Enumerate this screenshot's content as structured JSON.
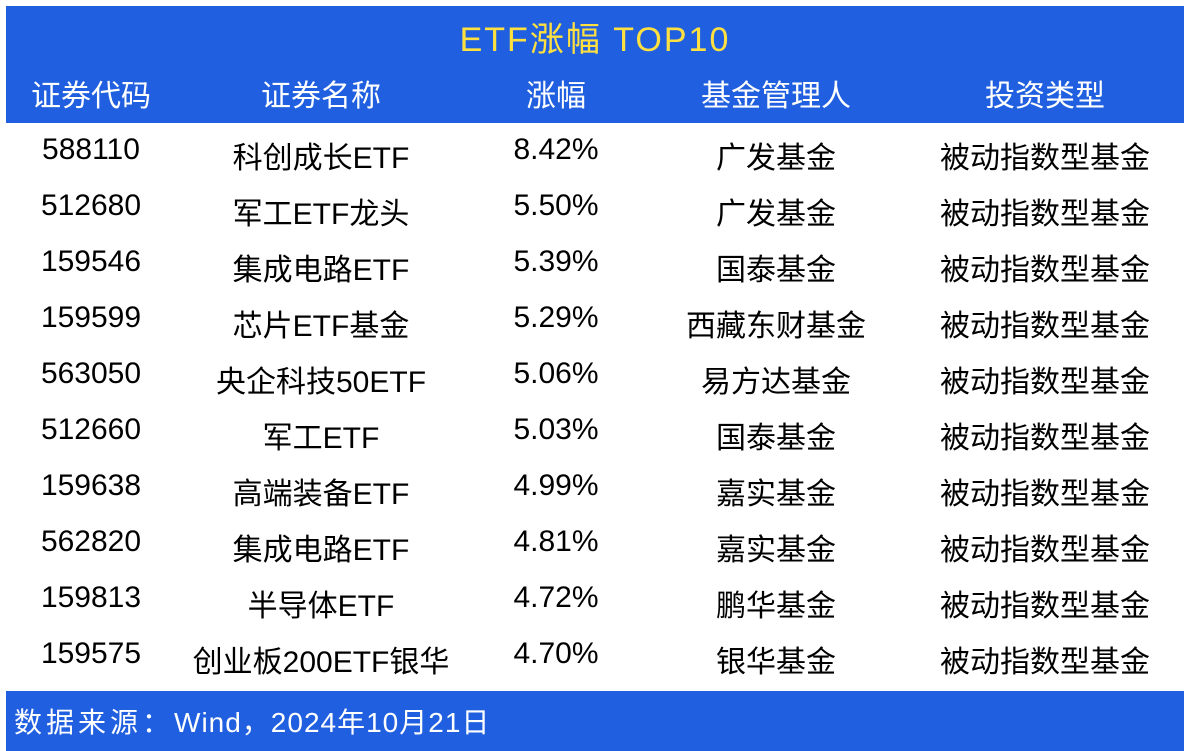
{
  "title": "ETF涨幅 TOP10",
  "columns": {
    "code": "证券代码",
    "name": "证券名称",
    "pct": "涨幅",
    "mgr": "基金管理人",
    "type": "投资类型"
  },
  "rows": [
    {
      "code": "588110",
      "name": "科创成长ETF",
      "pct": "8.42%",
      "mgr": "广发基金",
      "type": "被动指数型基金"
    },
    {
      "code": "512680",
      "name": "军工ETF龙头",
      "pct": "5.50%",
      "mgr": "广发基金",
      "type": "被动指数型基金"
    },
    {
      "code": "159546",
      "name": "集成电路ETF",
      "pct": "5.39%",
      "mgr": "国泰基金",
      "type": "被动指数型基金"
    },
    {
      "code": "159599",
      "name": "芯片ETF基金",
      "pct": "5.29%",
      "mgr": "西藏东财基金",
      "type": "被动指数型基金"
    },
    {
      "code": "563050",
      "name": "央企科技50ETF",
      "pct": "5.06%",
      "mgr": "易方达基金",
      "type": "被动指数型基金"
    },
    {
      "code": "512660",
      "name": "军工ETF",
      "pct": "5.03%",
      "mgr": "国泰基金",
      "type": "被动指数型基金"
    },
    {
      "code": "159638",
      "name": "高端装备ETF",
      "pct": "4.99%",
      "mgr": "嘉实基金",
      "type": "被动指数型基金"
    },
    {
      "code": "562820",
      "name": "集成电路ETF",
      "pct": "4.81%",
      "mgr": "嘉实基金",
      "type": "被动指数型基金"
    },
    {
      "code": "159813",
      "name": "半导体ETF",
      "pct": "4.72%",
      "mgr": "鹏华基金",
      "type": "被动指数型基金"
    },
    {
      "code": "159575",
      "name": "创业板200ETF银华",
      "pct": "4.70%",
      "mgr": "银华基金",
      "type": "被动指数型基金"
    }
  ],
  "footer": {
    "label": "数据来源：",
    "value": "Wind，2024年10月21日"
  },
  "colors": {
    "header_bg": "#2060e0",
    "title_text": "#ffe040",
    "header_text": "#ffffff",
    "row_bg": "#ffffff",
    "row_text": "#000000"
  },
  "column_widths": {
    "code": 170,
    "name": 290,
    "pct": 180,
    "mgr": 260,
    "type": 278
  },
  "font_sizes": {
    "title": 34,
    "header": 30,
    "body": 30,
    "footer": 28
  }
}
